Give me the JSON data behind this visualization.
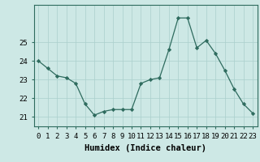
{
  "x": [
    0,
    1,
    2,
    3,
    4,
    5,
    6,
    7,
    8,
    9,
    10,
    11,
    12,
    13,
    14,
    15,
    16,
    17,
    18,
    19,
    20,
    21,
    22,
    23
  ],
  "y": [
    24.0,
    23.6,
    23.2,
    23.1,
    22.8,
    21.7,
    21.1,
    21.3,
    21.4,
    21.4,
    21.4,
    22.8,
    23.0,
    23.1,
    24.6,
    26.3,
    26.3,
    24.7,
    25.1,
    24.4,
    23.5,
    22.5,
    21.7,
    21.2
  ],
  "line_color": "#2e6b5e",
  "marker_color": "#2e6b5e",
  "bg_color": "#cde8e5",
  "grid_color": "#aacfcc",
  "xlabel": "Humidex (Indice chaleur)",
  "ylim_min": 20.5,
  "ylim_max": 27.0,
  "yticks": [
    21,
    22,
    23,
    24,
    25
  ],
  "xticks": [
    0,
    1,
    2,
    3,
    4,
    5,
    6,
    7,
    8,
    9,
    10,
    11,
    12,
    13,
    14,
    15,
    16,
    17,
    18,
    19,
    20,
    21,
    22,
    23
  ],
  "xlabel_fontsize": 7.5,
  "tick_fontsize": 6.5
}
